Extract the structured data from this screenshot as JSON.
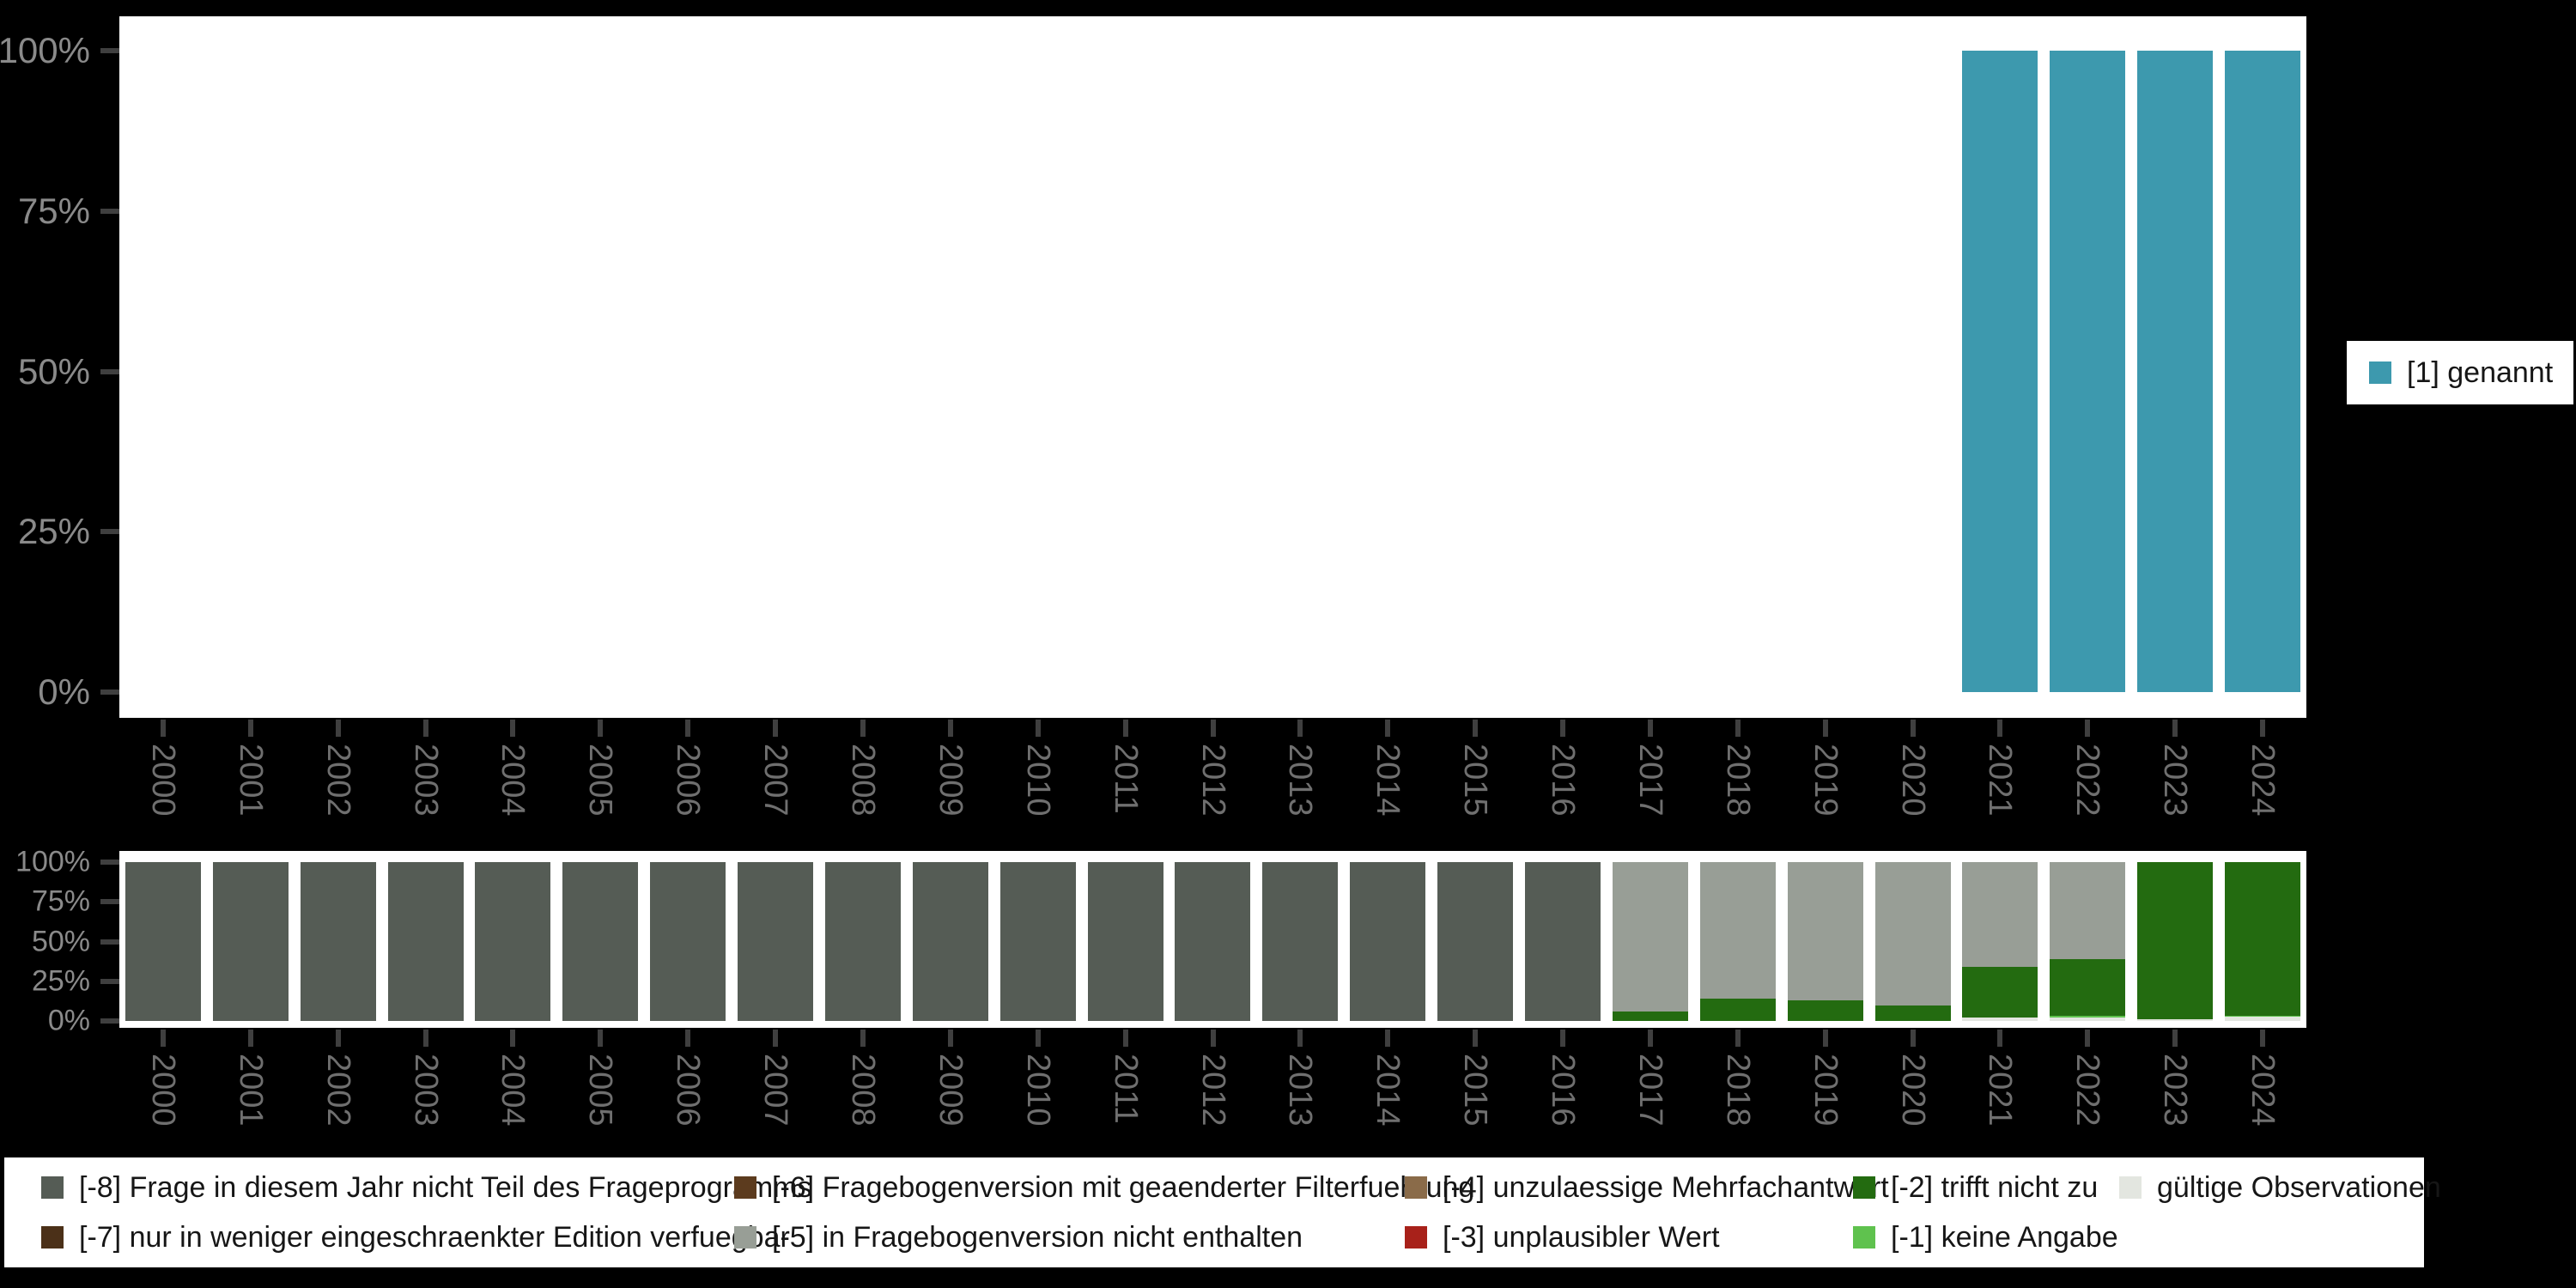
{
  "background": "#000000",
  "right_legend": {
    "label": "[1] genannt",
    "color": "#3d99ae"
  },
  "bottom_legend": {
    "items": [
      {
        "label": "[-8] Frage in diesem Jahr nicht Teil des Frageprogramms",
        "color": "#555c55"
      },
      {
        "label": "[-7] nur in weniger eingeschraenkter Edition verfuegbar",
        "color": "#4b3018"
      },
      {
        "label": "[-6] Fragebogenversion mit geaenderter Filterfuehrung",
        "color": "#5c3b1e"
      },
      {
        "label": "[-5] in Fragebogenversion nicht enthalten",
        "color": "#989e96"
      },
      {
        "label": "[-4] unzulaessige Mehrfachantwort",
        "color": "#8a6b49"
      },
      {
        "label": "[-3] unplausibler Wert",
        "color": "#a8211a"
      },
      {
        "label": "[-2] trifft nicht zu",
        "color": "#236b10"
      },
      {
        "label": "[-1] keine Angabe",
        "color": "#5fc24e"
      },
      {
        "label": "gültige Observationen",
        "color": "#e3e6e0"
      }
    ]
  },
  "chart_data": [
    {
      "id": "top",
      "type": "bar",
      "stacked": true,
      "title": "",
      "xlabel": "",
      "ylabel": "",
      "ylim": [
        0,
        100
      ],
      "grid": false,
      "legend_position": "right",
      "y_ticks_top_to_bottom": [
        "100%",
        "75%",
        "50%",
        "25%",
        "0%"
      ],
      "categories": [
        "2000",
        "2001",
        "2002",
        "2003",
        "2004",
        "2005",
        "2006",
        "2007",
        "2008",
        "2009",
        "2010",
        "2011",
        "2012",
        "2013",
        "2014",
        "2015",
        "2016",
        "2017",
        "2018",
        "2019",
        "2020",
        "2021",
        "2022",
        "2023",
        "2024"
      ],
      "series": [
        {
          "name": "[1] genannt",
          "color": "#3d99ae",
          "values": [
            0,
            0,
            0,
            0,
            0,
            0,
            0,
            0,
            0,
            0,
            0,
            0,
            0,
            0,
            0,
            0,
            0,
            0,
            0,
            0,
            0,
            100,
            100,
            100,
            100
          ]
        }
      ]
    },
    {
      "id": "bottom",
      "type": "bar",
      "stacked": true,
      "title": "",
      "xlabel": "",
      "ylabel": "",
      "ylim": [
        0,
        100
      ],
      "grid": false,
      "legend_position": "bottom",
      "y_ticks_top_to_bottom": [
        "100%",
        "75%",
        "50%",
        "25%",
        "0%"
      ],
      "categories": [
        "2000",
        "2001",
        "2002",
        "2003",
        "2004",
        "2005",
        "2006",
        "2007",
        "2008",
        "2009",
        "2010",
        "2011",
        "2012",
        "2013",
        "2014",
        "2015",
        "2016",
        "2017",
        "2018",
        "2019",
        "2020",
        "2021",
        "2022",
        "2023",
        "2024"
      ],
      "series": [
        {
          "name": "gültige Observationen",
          "color": "#e3e6e0",
          "values": [
            0,
            0,
            0,
            0,
            0,
            0,
            0,
            0,
            0,
            0,
            0,
            0,
            0,
            0,
            0,
            0,
            0,
            0,
            0,
            0,
            0,
            2,
            2,
            1,
            2.5
          ]
        },
        {
          "name": "[-1] keine Angabe",
          "color": "#5fc24e",
          "values": [
            0,
            0,
            0,
            0,
            0,
            0,
            0,
            0,
            0,
            0,
            0,
            0,
            0,
            0,
            0,
            0,
            0,
            0,
            0,
            0,
            0,
            0,
            1,
            0,
            1
          ]
        },
        {
          "name": "[-2] trifft nicht zu",
          "color": "#236b10",
          "values": [
            0,
            0,
            0,
            0,
            0,
            0,
            0,
            0,
            0,
            0,
            0,
            0,
            0,
            0,
            0,
            0,
            0,
            6,
            14,
            13,
            10,
            32,
            36,
            99,
            96.5
          ]
        },
        {
          "name": "[-5] in Fragebogenversion nicht enthalten",
          "color": "#989e96",
          "values": [
            0,
            0,
            0,
            0,
            0,
            0,
            0,
            0,
            0,
            0,
            0,
            0,
            0,
            0,
            0,
            0,
            0,
            94,
            86,
            87,
            90,
            66,
            61,
            0,
            0
          ]
        },
        {
          "name": "[-8] Frage in diesem Jahr nicht Teil des Frageprogramms",
          "color": "#555c55",
          "values": [
            100,
            100,
            100,
            100,
            100,
            100,
            100,
            100,
            100,
            100,
            100,
            100,
            100,
            100,
            100,
            100,
            100,
            0,
            0,
            0,
            0,
            0,
            0,
            0,
            0
          ]
        }
      ]
    }
  ]
}
